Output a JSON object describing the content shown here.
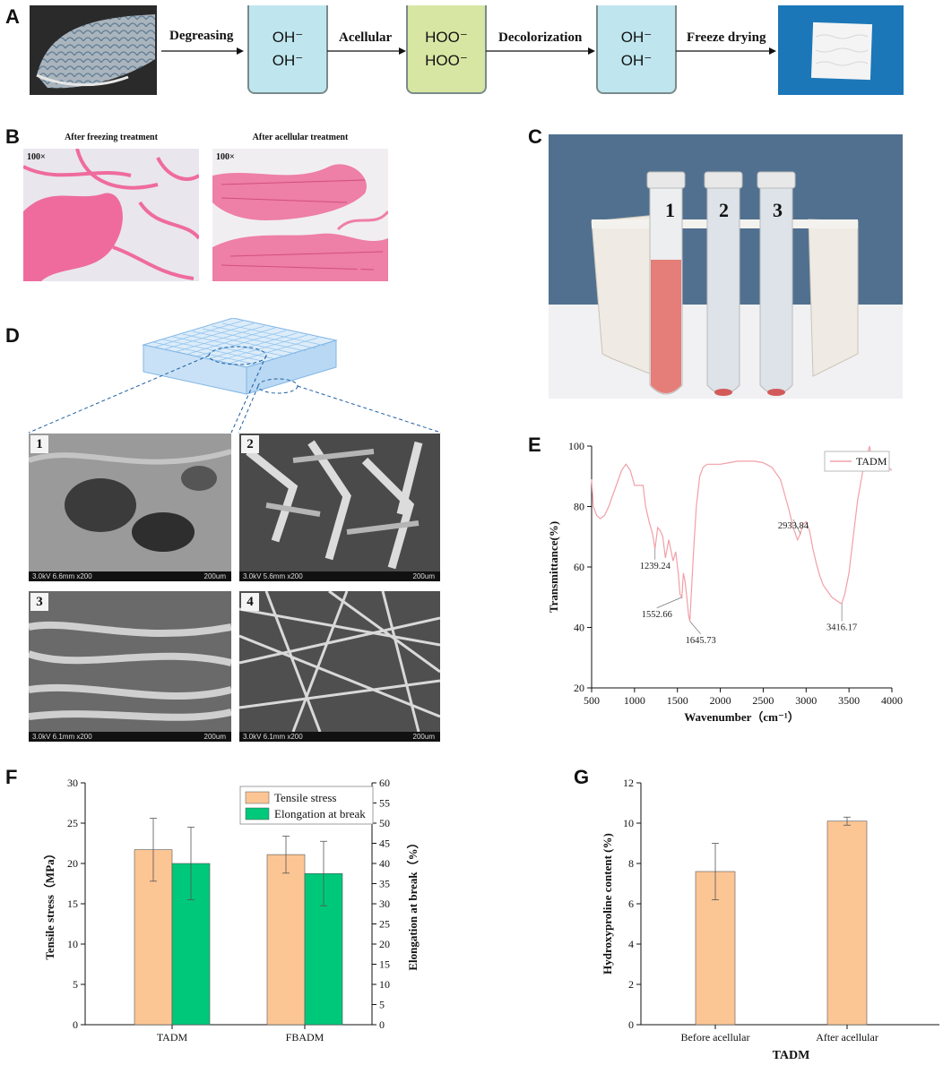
{
  "panels": {
    "a": "A",
    "b": "B",
    "c": "C",
    "d": "D",
    "e": "E",
    "f": "F",
    "g": "G"
  },
  "process": {
    "steps": [
      "Degreasing",
      "Acellular",
      "Decolorization",
      "Freeze drying"
    ],
    "beakers": [
      {
        "line1": "OH⁻",
        "line2": "OH⁻",
        "color": "#bfe6ee"
      },
      {
        "line1": "HOO⁻",
        "line2": "HOO⁻",
        "color": "#d7e7a3"
      },
      {
        "line1": "OH⁻",
        "line2": "OH⁻",
        "color": "#bfe6ee"
      }
    ]
  },
  "histology": {
    "left_title": "After freezing treatment",
    "right_title": "After acellular treatment",
    "magnification": "100×"
  },
  "tubes": {
    "labels": [
      "1",
      "2",
      "3"
    ]
  },
  "sem": {
    "labels": [
      "1",
      "2",
      "3",
      "4"
    ],
    "infobars": [
      "3.0kV 6.6mm x200",
      "3.0kV 5.6mm x200",
      "3.0kV 6.1mm x200",
      "3.0kV 6.1mm x200"
    ],
    "scale": "200um"
  },
  "chart_data": [
    {
      "type": "line",
      "panel": "E",
      "xlabel": "Wavenumber（cm⁻¹）",
      "ylabel": "Transmittance(%)",
      "xlim": [
        500,
        4000
      ],
      "ylim": [
        20,
        100
      ],
      "xticks": [
        500,
        1000,
        1500,
        2000,
        2500,
        3000,
        3500,
        4000
      ],
      "yticks": [
        20,
        40,
        60,
        80,
        100
      ],
      "legend": "TADM",
      "legend_position": "top-right",
      "series_color": "#f0a0a8",
      "series": [
        {
          "name": "TADM",
          "x": [
            500,
            520,
            560,
            600,
            650,
            700,
            750,
            800,
            850,
            900,
            950,
            1000,
            1050,
            1100,
            1130,
            1170,
            1210,
            1239,
            1270,
            1300,
            1330,
            1360,
            1400,
            1450,
            1480,
            1510,
            1530,
            1552,
            1570,
            1590,
            1610,
            1630,
            1645,
            1660,
            1690,
            1720,
            1760,
            1800,
            1850,
            1900,
            2000,
            2100,
            2200,
            2300,
            2400,
            2500,
            2600,
            2700,
            2750,
            2800,
            2850,
            2900,
            2933,
            2960,
            3000,
            3040,
            3080,
            3120,
            3160,
            3200,
            3250,
            3300,
            3350,
            3400,
            3416,
            3450,
            3500,
            3550,
            3600,
            3650,
            3680,
            3700,
            3720,
            3740,
            3760,
            3800,
            3850,
            3900,
            3950,
            4000
          ],
          "y": [
            89,
            80,
            77,
            76,
            77,
            80,
            84,
            88,
            92,
            94,
            92,
            87,
            87,
            87,
            80,
            75,
            71,
            66,
            73,
            72,
            70,
            63,
            69,
            62,
            65,
            58,
            51,
            50,
            58,
            55,
            50,
            44,
            42,
            50,
            66,
            80,
            90,
            93,
            94,
            94,
            94,
            94.5,
            95,
            95,
            95,
            94.5,
            93,
            89,
            84,
            79,
            73,
            69,
            71,
            74,
            75,
            72,
            66,
            61,
            57,
            54,
            52,
            50,
            49,
            48,
            48,
            51,
            58,
            70,
            82,
            90,
            95,
            92,
            98,
            100,
            96,
            95,
            94,
            93,
            93,
            92
          ]
        }
      ],
      "annotations": [
        "1239.24",
        "1552.66",
        "1645.73",
        "2933.84",
        "3416.17"
      ]
    },
    {
      "type": "bar",
      "panel": "F",
      "categories": [
        "TADM",
        "FBADM"
      ],
      "ylabel": "Tensile stress（MPa）",
      "ylabel_right": "Elongation at break（%）",
      "ylim": [
        0,
        30
      ],
      "ylim_right": [
        0,
        60
      ],
      "yticks": [
        0,
        5,
        10,
        15,
        20,
        25,
        30
      ],
      "yticks_right": [
        0,
        5,
        10,
        15,
        20,
        25,
        30,
        35,
        40,
        45,
        50,
        55,
        60
      ],
      "legend_position": "top-right",
      "series": [
        {
          "name": "Tensile stress",
          "axis": "left",
          "color": "#fcc594",
          "values": [
            21.7,
            21.1
          ],
          "errors": [
            3.9,
            2.3
          ]
        },
        {
          "name": "Elongation at break",
          "axis": "right",
          "color": "#00c87a",
          "values": [
            40.0,
            37.5
          ],
          "errors": [
            9.0,
            8.0
          ]
        }
      ]
    },
    {
      "type": "bar",
      "panel": "G",
      "categories": [
        "Before acellular",
        "After acellular"
      ],
      "xlabel": "TADM",
      "ylabel": "Hydroxyproline content (%)",
      "ylim": [
        0,
        12
      ],
      "yticks": [
        0,
        2,
        4,
        6,
        8,
        10,
        12
      ],
      "series": [
        {
          "color": "#fcc594",
          "values": [
            7.6,
            10.1
          ],
          "errors": [
            1.4,
            0.2
          ]
        }
      ]
    }
  ]
}
